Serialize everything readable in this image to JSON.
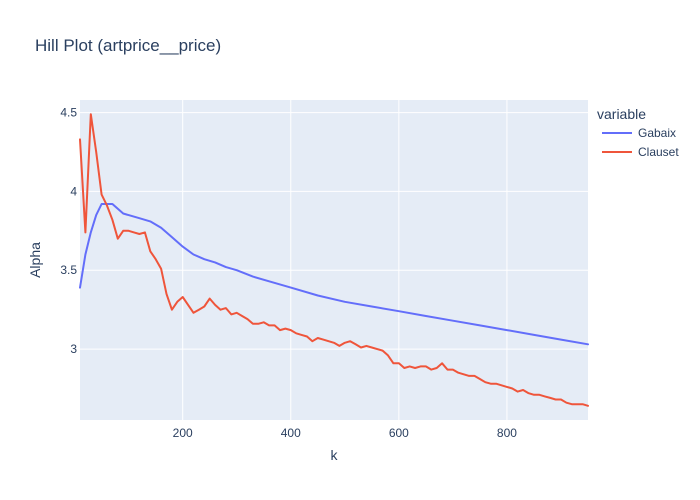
{
  "chart_data": {
    "type": "line",
    "title": "Hill Plot (artprice__price)",
    "xlabel": "k",
    "ylabel": "Alpha",
    "xlim": [
      10,
      950
    ],
    "ylim": [
      2.55,
      4.58
    ],
    "x_ticks": [
      200,
      400,
      600,
      800
    ],
    "x_tick_labels": [
      "200",
      "400",
      "600",
      "800"
    ],
    "y_ticks": [
      3,
      3.5,
      4,
      4.5
    ],
    "y_tick_labels": [
      "3",
      "3.5",
      "4",
      "4.5"
    ],
    "grid": true,
    "legend": {
      "title": "variable",
      "placement": "top-right"
    },
    "plot_bg": "#e5ecf6",
    "series": [
      {
        "name": "Gabaix",
        "color": "#636efa",
        "x": [
          10,
          20,
          30,
          40,
          50,
          60,
          70,
          80,
          90,
          100,
          120,
          140,
          160,
          180,
          200,
          220,
          240,
          260,
          280,
          300,
          330,
          360,
          400,
          450,
          500,
          550,
          600,
          650,
          700,
          750,
          800,
          850,
          900,
          950
        ],
        "y": [
          3.39,
          3.6,
          3.74,
          3.85,
          3.92,
          3.92,
          3.92,
          3.89,
          3.86,
          3.85,
          3.83,
          3.81,
          3.77,
          3.71,
          3.65,
          3.6,
          3.57,
          3.55,
          3.52,
          3.5,
          3.46,
          3.43,
          3.39,
          3.34,
          3.3,
          3.27,
          3.24,
          3.21,
          3.18,
          3.15,
          3.12,
          3.09,
          3.06,
          3.03
        ]
      },
      {
        "name": "Clauset",
        "color": "#ef553b",
        "x": [
          10,
          20,
          30,
          40,
          50,
          60,
          70,
          80,
          90,
          100,
          110,
          120,
          130,
          140,
          150,
          160,
          170,
          180,
          190,
          200,
          210,
          220,
          230,
          240,
          250,
          260,
          270,
          280,
          290,
          300,
          310,
          320,
          330,
          340,
          350,
          360,
          370,
          380,
          390,
          400,
          410,
          420,
          430,
          440,
          450,
          460,
          470,
          480,
          490,
          500,
          510,
          520,
          530,
          540,
          550,
          560,
          570,
          580,
          590,
          600,
          610,
          620,
          630,
          640,
          650,
          660,
          670,
          680,
          690,
          700,
          710,
          720,
          730,
          740,
          750,
          760,
          770,
          780,
          790,
          800,
          810,
          820,
          830,
          840,
          850,
          860,
          870,
          880,
          890,
          900,
          910,
          920,
          930,
          940,
          950
        ],
        "y": [
          4.33,
          3.74,
          4.49,
          4.25,
          3.98,
          3.91,
          3.82,
          3.7,
          3.75,
          3.75,
          3.74,
          3.73,
          3.74,
          3.62,
          3.57,
          3.51,
          3.35,
          3.25,
          3.3,
          3.33,
          3.28,
          3.23,
          3.25,
          3.27,
          3.32,
          3.28,
          3.25,
          3.26,
          3.22,
          3.23,
          3.21,
          3.19,
          3.16,
          3.16,
          3.17,
          3.15,
          3.15,
          3.12,
          3.13,
          3.12,
          3.1,
          3.09,
          3.08,
          3.05,
          3.07,
          3.06,
          3.05,
          3.04,
          3.02,
          3.04,
          3.05,
          3.03,
          3.01,
          3.02,
          3.01,
          3.0,
          2.99,
          2.96,
          2.91,
          2.91,
          2.88,
          2.89,
          2.88,
          2.89,
          2.89,
          2.87,
          2.88,
          2.91,
          2.87,
          2.87,
          2.85,
          2.84,
          2.83,
          2.83,
          2.81,
          2.79,
          2.78,
          2.78,
          2.77,
          2.76,
          2.75,
          2.73,
          2.74,
          2.72,
          2.71,
          2.71,
          2.7,
          2.69,
          2.68,
          2.68,
          2.66,
          2.65,
          2.65,
          2.65,
          2.64
        ]
      }
    ]
  }
}
